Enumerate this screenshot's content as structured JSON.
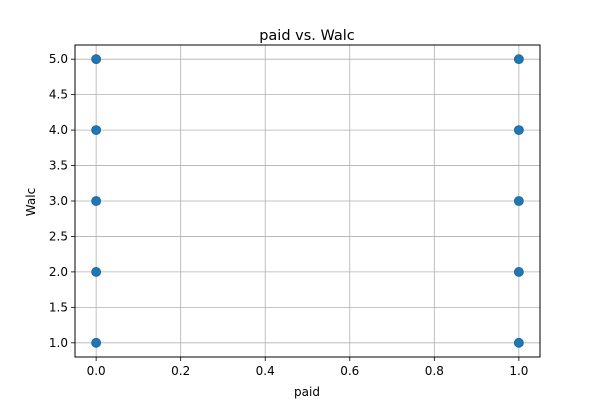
{
  "chart_data": {
    "type": "scatter",
    "title": "paid vs. Walc",
    "xlabel": "paid",
    "ylabel": "Walc",
    "xlim": [
      -0.05,
      1.05
    ],
    "ylim": [
      0.8,
      5.2
    ],
    "xticks": [
      0.0,
      0.2,
      0.4,
      0.6,
      0.8,
      1.0
    ],
    "xtick_labels": [
      "0.0",
      "0.2",
      "0.4",
      "0.6",
      "0.8",
      "1.0"
    ],
    "yticks": [
      1.0,
      1.5,
      2.0,
      2.5,
      3.0,
      3.5,
      4.0,
      4.5,
      5.0
    ],
    "ytick_labels": [
      "1.0",
      "1.5",
      "2.0",
      "2.5",
      "3.0",
      "3.5",
      "4.0",
      "4.5",
      "5.0"
    ],
    "grid": true,
    "series": [
      {
        "x": [
          0,
          0,
          0,
          0,
          0,
          1,
          1,
          1,
          1,
          1
        ],
        "y": [
          1,
          2,
          3,
          4,
          5,
          1,
          2,
          3,
          4,
          5
        ]
      }
    ],
    "colors": {
      "marker": "#1f77b4",
      "marker_edge": "#1a5f92",
      "grid": "#b0b0b0",
      "axes": "#000000"
    }
  }
}
